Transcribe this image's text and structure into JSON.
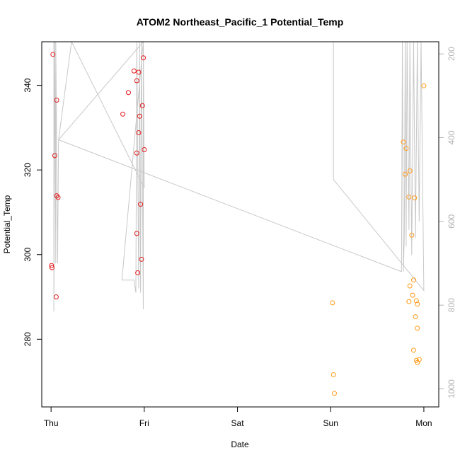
{
  "chart_data": {
    "type": "scatter",
    "title": "ATOM2 Northeast_Pacific_1 Potential_Temp",
    "xlabel": "Date",
    "ylabel": "Potential_Temp",
    "x_axis": {
      "unit": "days since Thursday 00:00",
      "range": [
        -0.1,
        4.16
      ],
      "ticks": [
        {
          "label": "Thu",
          "value": 0
        },
        {
          "label": "Fri",
          "value": 1
        },
        {
          "label": "Sat",
          "value": 2
        },
        {
          "label": "Sun",
          "value": 3
        },
        {
          "label": "Mon",
          "value": 4
        }
      ]
    },
    "y_axis": {
      "range": [
        264,
        350.3
      ],
      "ticks": [
        280,
        300,
        320,
        340
      ]
    },
    "y2_axis": {
      "description": "depth, inverted",
      "range": [
        1043,
        171
      ],
      "ticks": [
        200,
        400,
        600,
        800,
        1000
      ],
      "color": "#b3b3b3"
    },
    "colors": {
      "red_series": "#e41a1c",
      "orange_series": "#ff9a1a",
      "depth_line": "#c8c8c8",
      "frame": "#000000"
    },
    "series": [
      {
        "name": "red points",
        "color": "#e41a1c",
        "points": [
          [
            0.02,
            347.3
          ],
          [
            0.005,
            297.4
          ],
          [
            0.01,
            296.9
          ],
          [
            0.04,
            323.4
          ],
          [
            0.06,
            336.5
          ],
          [
            0.06,
            313.9
          ],
          [
            0.075,
            313.5
          ],
          [
            0.055,
            290.0
          ],
          [
            0.77,
            333.2
          ],
          [
            0.83,
            338.3
          ],
          [
            0.89,
            343.4
          ],
          [
            0.92,
            341.1
          ],
          [
            0.94,
            343.1
          ],
          [
            0.95,
            332.7
          ],
          [
            0.98,
            335.2
          ],
          [
            0.99,
            346.5
          ],
          [
            1.0,
            324.8
          ],
          [
            0.92,
            324.0
          ],
          [
            0.94,
            328.8
          ],
          [
            0.96,
            311.9
          ],
          [
            0.92,
            305.0
          ],
          [
            0.97,
            298.9
          ],
          [
            0.93,
            295.7
          ]
        ]
      },
      {
        "name": "orange points",
        "color": "#ff9a1a",
        "points": [
          [
            3.78,
            326.6
          ],
          [
            3.81,
            325.1
          ],
          [
            3.8,
            319.0
          ],
          [
            3.85,
            319.8
          ],
          [
            3.84,
            313.6
          ],
          [
            3.9,
            313.4
          ],
          [
            3.87,
            304.6
          ],
          [
            3.89,
            294.0
          ],
          [
            3.85,
            292.6
          ],
          [
            3.88,
            290.4
          ],
          [
            3.84,
            288.9
          ],
          [
            3.92,
            289.1
          ],
          [
            3.93,
            288.3
          ],
          [
            3.91,
            285.3
          ],
          [
            3.93,
            282.6
          ],
          [
            3.89,
            277.4
          ],
          [
            3.92,
            275.0
          ],
          [
            3.93,
            274.5
          ],
          [
            3.95,
            275.2
          ],
          [
            4.0,
            339.9
          ],
          [
            3.02,
            288.6
          ],
          [
            3.03,
            271.6
          ],
          [
            3.04,
            267.2
          ]
        ]
      }
    ],
    "depth_line": {
      "name": "depth trace",
      "color": "#c8c8c8",
      "points": [
        [
          0.03,
          800
        ],
        [
          0.03,
          171
        ],
        [
          0.03,
          815
        ],
        [
          0.04,
          171
        ],
        [
          0.05,
          700
        ],
        [
          0.05,
          171
        ],
        [
          0.07,
          700
        ],
        [
          0.08,
          405
        ],
        [
          0.22,
          171
        ],
        [
          1.0,
          520
        ],
        [
          0.99,
          171
        ],
        [
          0.99,
          810
        ],
        [
          0.97,
          171
        ],
        [
          0.96,
          770
        ],
        [
          0.95,
          171
        ],
        [
          0.94,
          760
        ],
        [
          0.92,
          171
        ],
        [
          0.91,
          770
        ],
        [
          0.89,
          740
        ],
        [
          0.76,
          740
        ],
        [
          0.76,
          740
        ],
        [
          0.99,
          171
        ],
        [
          0.99,
          171
        ],
        [
          0.08,
          405
        ],
        [
          3.76,
          720
        ],
        [
          3.76,
          720
        ],
        [
          3.77,
          171
        ],
        [
          3.78,
          720
        ],
        [
          3.79,
          635
        ],
        [
          3.8,
          171
        ],
        [
          3.81,
          660
        ],
        [
          3.82,
          171
        ],
        [
          3.84,
          620
        ],
        [
          3.85,
          171
        ],
        [
          3.87,
          680
        ],
        [
          3.89,
          171
        ],
        [
          3.91,
          640
        ],
        [
          3.93,
          171
        ],
        [
          3.95,
          600
        ],
        [
          3.97,
          171
        ],
        [
          4.0,
          765
        ],
        [
          3.03,
          500
        ],
        [
          3.03,
          171
        ]
      ]
    }
  }
}
